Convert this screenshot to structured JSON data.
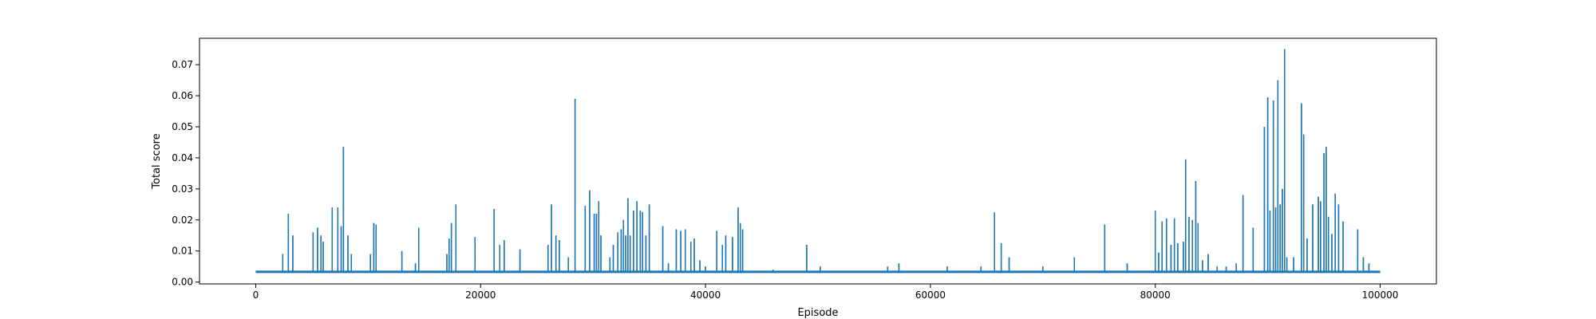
{
  "chart_data": {
    "type": "line",
    "title": "",
    "xlabel": "Episode",
    "ylabel": "Total score",
    "xlim": [
      -5000,
      105000
    ],
    "ylim": [
      -0.0006,
      0.0785
    ],
    "grid": false,
    "legend": "none",
    "series_color": "#1f77b4",
    "baseline": 0.0033,
    "x_ticks": [
      {
        "value": 0,
        "label": "0"
      },
      {
        "value": 20000,
        "label": "20000"
      },
      {
        "value": 40000,
        "label": "40000"
      },
      {
        "value": 60000,
        "label": "60000"
      },
      {
        "value": 80000,
        "label": "80000"
      },
      {
        "value": 100000,
        "label": "100000"
      }
    ],
    "y_ticks": [
      {
        "value": 0.0,
        "label": "0.00"
      },
      {
        "value": 0.01,
        "label": "0.01"
      },
      {
        "value": 0.02,
        "label": "0.02"
      },
      {
        "value": 0.03,
        "label": "0.03"
      },
      {
        "value": 0.04,
        "label": "0.04"
      },
      {
        "value": 0.05,
        "label": "0.05"
      },
      {
        "value": 0.06,
        "label": "0.06"
      },
      {
        "value": 0.07,
        "label": "0.07"
      }
    ],
    "series": [
      {
        "name": "Total score",
        "spikes": [
          [
            2400,
            0.009
          ],
          [
            2900,
            0.022
          ],
          [
            3300,
            0.015
          ],
          [
            5100,
            0.016
          ],
          [
            5500,
            0.0175
          ],
          [
            5800,
            0.015
          ],
          [
            6000,
            0.013
          ],
          [
            6800,
            0.024
          ],
          [
            7300,
            0.024
          ],
          [
            7600,
            0.018
          ],
          [
            7800,
            0.0435
          ],
          [
            8200,
            0.015
          ],
          [
            8500,
            0.009
          ],
          [
            10200,
            0.009
          ],
          [
            10500,
            0.019
          ],
          [
            10700,
            0.0185
          ],
          [
            13000,
            0.01
          ],
          [
            14200,
            0.006
          ],
          [
            14500,
            0.0175
          ],
          [
            17000,
            0.009
          ],
          [
            17200,
            0.014
          ],
          [
            17400,
            0.019
          ],
          [
            17800,
            0.025
          ],
          [
            19500,
            0.0145
          ],
          [
            21200,
            0.0235
          ],
          [
            21700,
            0.012
          ],
          [
            22100,
            0.0135
          ],
          [
            23500,
            0.0105
          ],
          [
            26000,
            0.012
          ],
          [
            26300,
            0.025
          ],
          [
            26700,
            0.015
          ],
          [
            27000,
            0.0135
          ],
          [
            27800,
            0.008
          ],
          [
            28400,
            0.059
          ],
          [
            29300,
            0.0245
          ],
          [
            29700,
            0.0295
          ],
          [
            30100,
            0.022
          ],
          [
            30300,
            0.022
          ],
          [
            30500,
            0.026
          ],
          [
            30700,
            0.015
          ],
          [
            31500,
            0.008
          ],
          [
            31800,
            0.012
          ],
          [
            32200,
            0.016
          ],
          [
            32500,
            0.017
          ],
          [
            32700,
            0.02
          ],
          [
            32900,
            0.015
          ],
          [
            33100,
            0.027
          ],
          [
            33300,
            0.015
          ],
          [
            33600,
            0.023
          ],
          [
            33900,
            0.026
          ],
          [
            34200,
            0.023
          ],
          [
            34400,
            0.0225
          ],
          [
            34700,
            0.015
          ],
          [
            35000,
            0.025
          ],
          [
            36200,
            0.018
          ],
          [
            36700,
            0.006
          ],
          [
            37400,
            0.017
          ],
          [
            37800,
            0.0165
          ],
          [
            38200,
            0.017
          ],
          [
            38700,
            0.013
          ],
          [
            39000,
            0.014
          ],
          [
            39500,
            0.007
          ],
          [
            40000,
            0.005
          ],
          [
            41000,
            0.0165
          ],
          [
            41500,
            0.012
          ],
          [
            41800,
            0.015
          ],
          [
            42400,
            0.0145
          ],
          [
            42900,
            0.024
          ],
          [
            43100,
            0.019
          ],
          [
            43300,
            0.017
          ],
          [
            46000,
            0.004
          ],
          [
            49000,
            0.012
          ],
          [
            50200,
            0.005
          ],
          [
            56200,
            0.005
          ],
          [
            57200,
            0.006
          ],
          [
            61500,
            0.005
          ],
          [
            64500,
            0.005
          ],
          [
            65700,
            0.0225
          ],
          [
            66300,
            0.0125
          ],
          [
            67000,
            0.008
          ],
          [
            70000,
            0.005
          ],
          [
            72800,
            0.008
          ],
          [
            75500,
            0.0185
          ],
          [
            77500,
            0.006
          ],
          [
            80000,
            0.023
          ],
          [
            80300,
            0.0095
          ],
          [
            80600,
            0.0195
          ],
          [
            81000,
            0.0205
          ],
          [
            81400,
            0.012
          ],
          [
            81700,
            0.0205
          ],
          [
            82000,
            0.0125
          ],
          [
            82500,
            0.013
          ],
          [
            82700,
            0.0395
          ],
          [
            83000,
            0.021
          ],
          [
            83300,
            0.02
          ],
          [
            83600,
            0.0325
          ],
          [
            83800,
            0.019
          ],
          [
            84200,
            0.007
          ],
          [
            84700,
            0.009
          ],
          [
            85500,
            0.005
          ],
          [
            86300,
            0.005
          ],
          [
            87200,
            0.006
          ],
          [
            87800,
            0.028
          ],
          [
            88700,
            0.0175
          ],
          [
            89700,
            0.05
          ],
          [
            90000,
            0.0595
          ],
          [
            90200,
            0.023
          ],
          [
            90500,
            0.0585
          ],
          [
            90700,
            0.024
          ],
          [
            90900,
            0.065
          ],
          [
            91100,
            0.025
          ],
          [
            91300,
            0.03
          ],
          [
            91500,
            0.075
          ],
          [
            91700,
            0.008
          ],
          [
            92300,
            0.008
          ],
          [
            93000,
            0.0575
          ],
          [
            93200,
            0.0475
          ],
          [
            93500,
            0.014
          ],
          [
            94000,
            0.025
          ],
          [
            94500,
            0.0275
          ],
          [
            94700,
            0.026
          ],
          [
            95000,
            0.0415
          ],
          [
            95200,
            0.0435
          ],
          [
            95400,
            0.021
          ],
          [
            95700,
            0.0155
          ],
          [
            96000,
            0.0285
          ],
          [
            96300,
            0.025
          ],
          [
            96700,
            0.0195
          ],
          [
            98000,
            0.017
          ],
          [
            98500,
            0.008
          ],
          [
            99000,
            0.006
          ]
        ]
      }
    ]
  }
}
